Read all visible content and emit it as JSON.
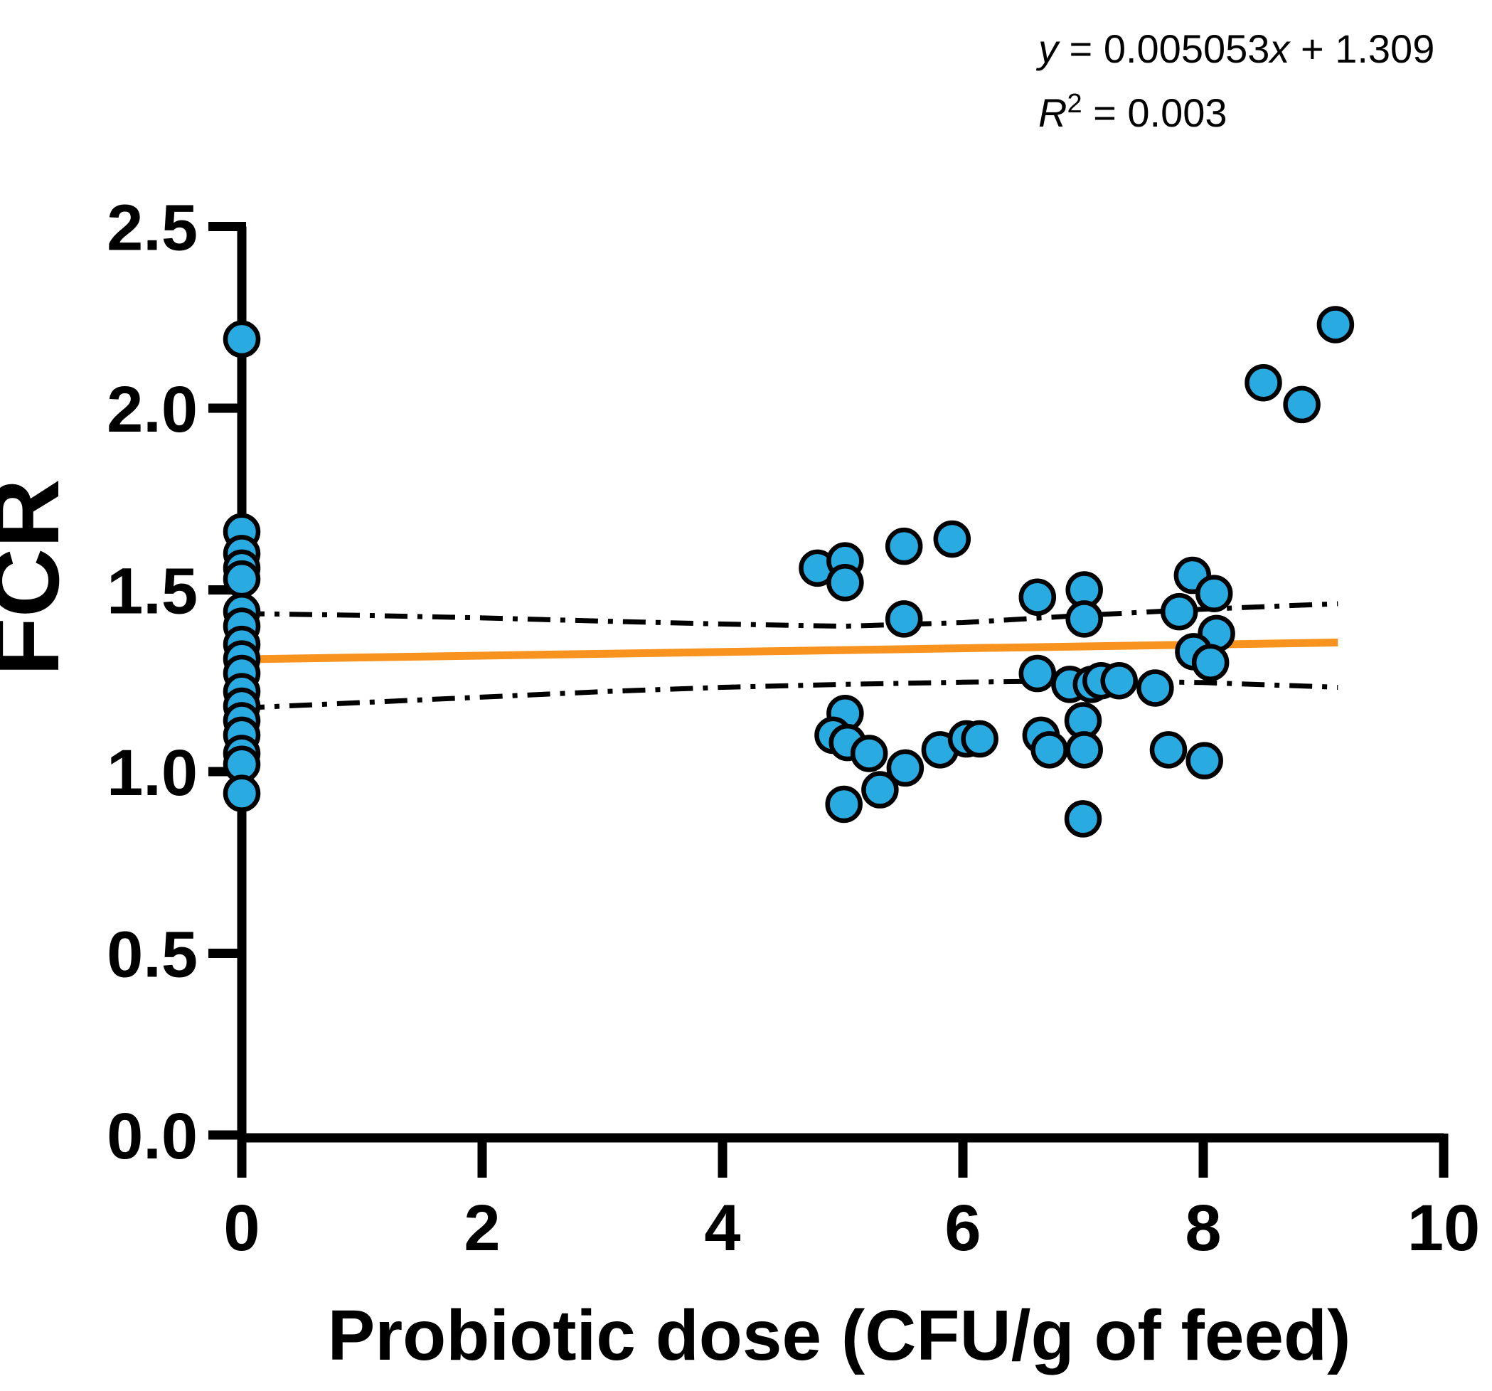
{
  "figure": {
    "annotation": {
      "line1": [
        {
          "text": "y",
          "italic": true
        },
        {
          "text": " = 0.005053",
          "italic": false
        },
        {
          "text": "x",
          "italic": true
        },
        {
          "text": " + 1.309",
          "italic": false
        }
      ],
      "line2": [
        {
          "text": "R",
          "italic": true
        },
        {
          "text": "2",
          "super": true
        },
        {
          "text": " = 0.003",
          "italic": false
        }
      ]
    }
  },
  "chart_data": {
    "type": "scatter",
    "title": "",
    "xlabel": "Probiotic dose (CFU/g of feed)",
    "ylabel": "FCR",
    "xlim": [
      0,
      10
    ],
    "ylim": [
      0.0,
      2.5
    ],
    "grid": false,
    "legend": "none",
    "x_ticks": [
      {
        "value": 0,
        "label": "0"
      },
      {
        "value": 2,
        "label": "2"
      },
      {
        "value": 4,
        "label": "4"
      },
      {
        "value": 6,
        "label": "6"
      },
      {
        "value": 8,
        "label": "8"
      },
      {
        "value": 10,
        "label": "10"
      }
    ],
    "y_ticks": [
      {
        "value": 0.0,
        "label": "0.0"
      },
      {
        "value": 0.5,
        "label": "0.5"
      },
      {
        "value": 1.0,
        "label": "1.0"
      },
      {
        "value": 1.5,
        "label": "1.5"
      },
      {
        "value": 2.0,
        "label": "2.0"
      },
      {
        "value": 2.5,
        "label": "2.5"
      }
    ],
    "marker_color": "#29ABE2",
    "marker_edge_color": "#000000",
    "ci_color": "#000000",
    "regression": {
      "equation": "y = 0.005053x + 1.309",
      "r_squared": 0.003,
      "slope": 0.005053,
      "intercept": 1.309,
      "x_start": 0,
      "x_end": 9.12,
      "color": "#F7931E"
    },
    "ci_upper": [
      [
        0,
        1.435
      ],
      [
        1,
        1.43
      ],
      [
        2,
        1.423
      ],
      [
        3,
        1.414
      ],
      [
        4,
        1.406
      ],
      [
        5,
        1.4
      ],
      [
        6,
        1.41
      ],
      [
        7,
        1.43
      ],
      [
        8,
        1.447
      ],
      [
        9.12,
        1.462
      ]
    ],
    "ci_lower": [
      [
        0,
        1.175
      ],
      [
        1,
        1.19
      ],
      [
        2,
        1.205
      ],
      [
        3,
        1.22
      ],
      [
        4,
        1.232
      ],
      [
        5,
        1.24
      ],
      [
        6,
        1.246
      ],
      [
        7,
        1.25
      ],
      [
        8,
        1.245
      ],
      [
        9.12,
        1.232
      ]
    ],
    "points": [
      [
        0,
        2.19
      ],
      [
        0,
        1.66
      ],
      [
        0,
        1.6
      ],
      [
        0,
        1.56
      ],
      [
        0,
        1.53
      ],
      [
        0,
        1.44
      ],
      [
        0,
        1.4
      ],
      [
        0,
        1.35
      ],
      [
        0,
        1.31
      ],
      [
        0,
        1.27
      ],
      [
        0,
        1.22
      ],
      [
        0,
        1.18
      ],
      [
        0,
        1.14
      ],
      [
        0,
        1.1
      ],
      [
        0,
        1.05
      ],
      [
        0,
        1.02
      ],
      [
        0,
        0.94
      ],
      [
        4.79,
        1.56
      ],
      [
        5.02,
        1.58
      ],
      [
        5.02,
        1.52
      ],
      [
        5.51,
        1.62
      ],
      [
        5.91,
        1.64
      ],
      [
        5.51,
        1.42
      ],
      [
        5.02,
        1.16
      ],
      [
        4.92,
        1.1
      ],
      [
        5.04,
        1.08
      ],
      [
        5.22,
        1.05
      ],
      [
        5.52,
        1.01
      ],
      [
        5.81,
        1.06
      ],
      [
        6.03,
        1.09
      ],
      [
        6.14,
        1.09
      ],
      [
        5.31,
        0.95
      ],
      [
        5.01,
        0.91
      ],
      [
        6.62,
        1.48
      ],
      [
        7.01,
        1.5
      ],
      [
        7.01,
        1.42
      ],
      [
        6.62,
        1.27
      ],
      [
        6.89,
        1.24
      ],
      [
        7.07,
        1.24
      ],
      [
        7.15,
        1.25
      ],
      [
        7.3,
        1.25
      ],
      [
        7.6,
        1.23
      ],
      [
        7.0,
        1.14
      ],
      [
        6.65,
        1.1
      ],
      [
        6.72,
        1.06
      ],
      [
        7.01,
        1.06
      ],
      [
        7.71,
        1.06
      ],
      [
        8.01,
        1.03
      ],
      [
        7.0,
        0.87
      ],
      [
        7.91,
        1.54
      ],
      [
        8.09,
        1.49
      ],
      [
        7.8,
        1.44
      ],
      [
        8.11,
        1.38
      ],
      [
        7.92,
        1.33
      ],
      [
        8.06,
        1.3
      ],
      [
        8.5,
        2.07
      ],
      [
        8.82,
        2.01
      ],
      [
        9.1,
        2.23
      ]
    ]
  }
}
